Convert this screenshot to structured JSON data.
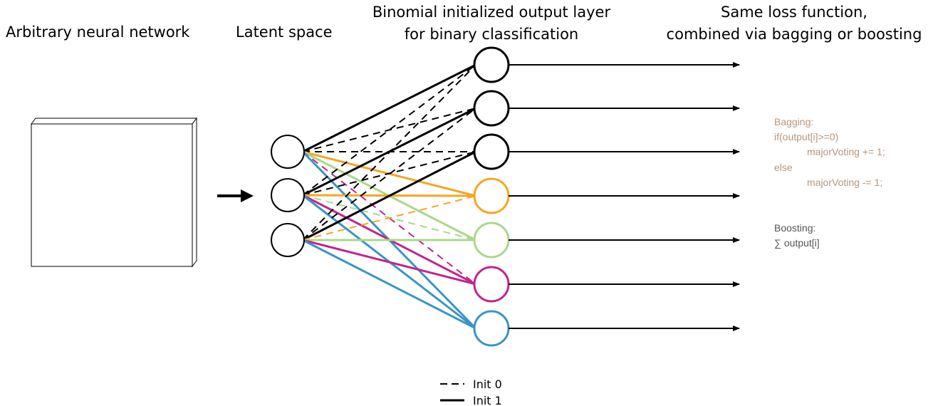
{
  "headings": {
    "network": "Arbitrary neural network",
    "latent": "Latent space",
    "output_line1": "Binomial initialized output layer",
    "output_line2": "for binary classification",
    "loss_line1": "Same loss function,",
    "loss_line2": "combined via bagging or boosting"
  },
  "bagging": {
    "title": "Bagging:",
    "line1": "if(output[i]>=0)",
    "line2": "majorVoting += 1;",
    "line3": "else",
    "line4": "majorVoting -= 1;"
  },
  "boosting": {
    "title": "Boosting:",
    "line1": "∑ output[i]"
  },
  "legend": {
    "init0": "Init 0",
    "init1": "Init 1"
  },
  "colors": {
    "black": "#000000",
    "orange": "#F5A623",
    "green": "#A8D88A",
    "magenta": "#C2258E",
    "blue": "#3A95C4",
    "bagging_text": "#B8957A",
    "boosting_text": "#555555"
  },
  "output_node_colors": [
    "black",
    "black",
    "black",
    "orange",
    "green",
    "magenta",
    "blue"
  ],
  "connections": [
    {
      "from": 0,
      "to": 0,
      "color": "black",
      "style": "solid"
    },
    {
      "from": 0,
      "to": 1,
      "color": "black",
      "style": "dashed"
    },
    {
      "from": 0,
      "to": 2,
      "color": "black",
      "style": "dashed"
    },
    {
      "from": 0,
      "to": 3,
      "color": "orange",
      "style": "solid"
    },
    {
      "from": 0,
      "to": 4,
      "color": "green",
      "style": "solid"
    },
    {
      "from": 0,
      "to": 5,
      "color": "magenta",
      "style": "dashed"
    },
    {
      "from": 0,
      "to": 6,
      "color": "blue",
      "style": "solid"
    },
    {
      "from": 1,
      "to": 0,
      "color": "black",
      "style": "dashed"
    },
    {
      "from": 1,
      "to": 1,
      "color": "black",
      "style": "solid"
    },
    {
      "from": 1,
      "to": 2,
      "color": "black",
      "style": "dashed"
    },
    {
      "from": 1,
      "to": 3,
      "color": "orange",
      "style": "solid"
    },
    {
      "from": 1,
      "to": 4,
      "color": "green",
      "style": "dashed"
    },
    {
      "from": 1,
      "to": 5,
      "color": "magenta",
      "style": "solid"
    },
    {
      "from": 1,
      "to": 6,
      "color": "blue",
      "style": "solid"
    },
    {
      "from": 2,
      "to": 0,
      "color": "black",
      "style": "dashed"
    },
    {
      "from": 2,
      "to": 1,
      "color": "black",
      "style": "dashed"
    },
    {
      "from": 2,
      "to": 2,
      "color": "black",
      "style": "solid"
    },
    {
      "from": 2,
      "to": 3,
      "color": "orange",
      "style": "dashed"
    },
    {
      "from": 2,
      "to": 4,
      "color": "green",
      "style": "solid"
    },
    {
      "from": 2,
      "to": 5,
      "color": "magenta",
      "style": "solid"
    },
    {
      "from": 2,
      "to": 6,
      "color": "blue",
      "style": "solid"
    }
  ]
}
